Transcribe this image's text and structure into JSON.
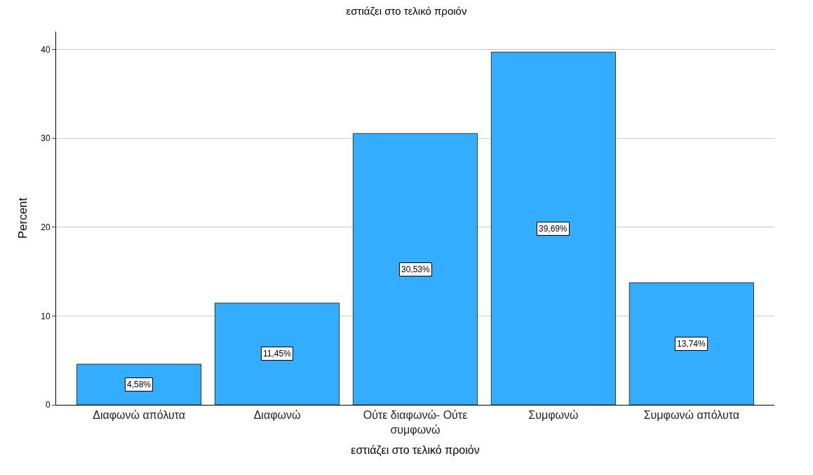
{
  "chart_data": {
    "type": "bar",
    "title": "εστιάζει στο τελικό προιόν",
    "xlabel": "εστιάζει στο τελικό προιόν",
    "ylabel": "Percent",
    "categories": [
      "Διαφωνώ απόλυτα",
      "Διαφωνώ",
      "Ούτε διαφωνώ- Ούτε συμφωνώ",
      "Συμφωνώ",
      "Συμφωνώ απόλυτα"
    ],
    "values": [
      4.58,
      11.45,
      30.53,
      39.69,
      13.74
    ],
    "value_labels": [
      "4,58%",
      "11,45%",
      "30,53%",
      "39,69%",
      "13,74%"
    ],
    "color": "#33adff",
    "ylim": [
      0,
      42
    ],
    "yticks": [
      0,
      10,
      20,
      30,
      40
    ],
    "grid": "y",
    "legend": false
  }
}
